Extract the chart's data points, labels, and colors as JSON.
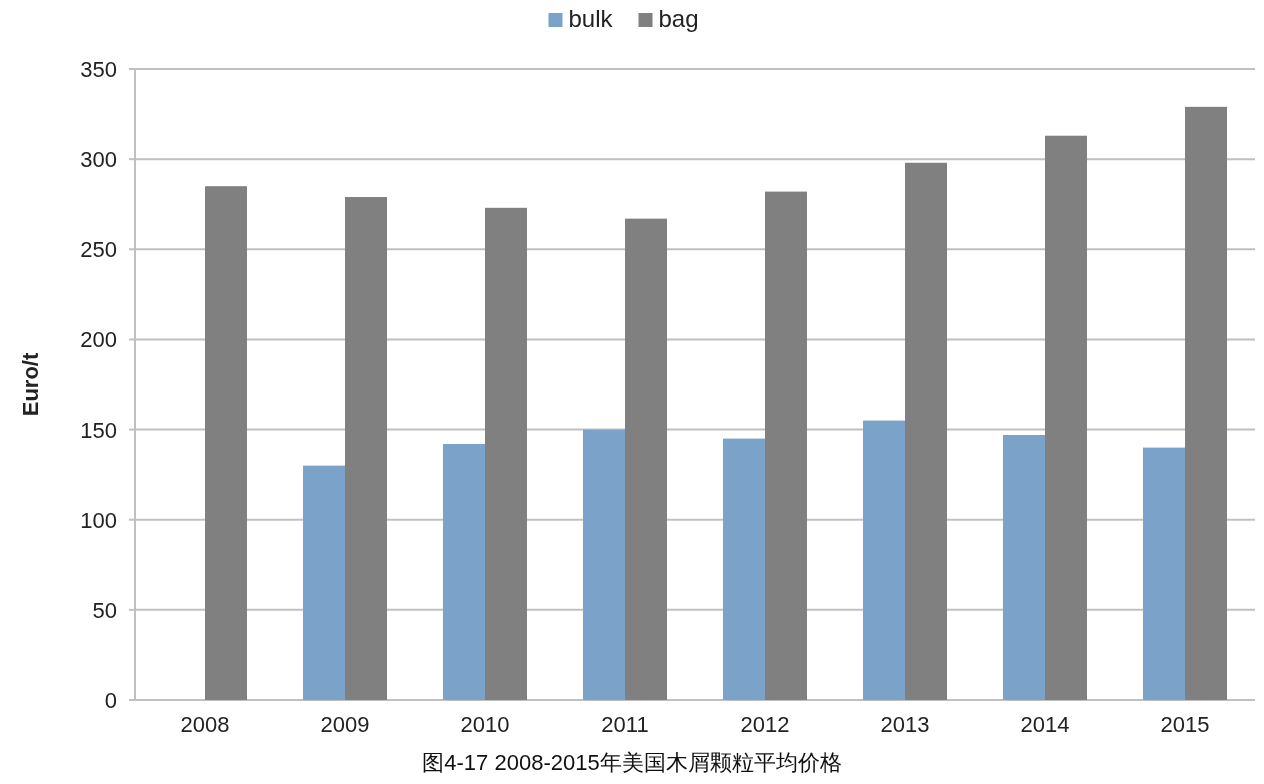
{
  "chart_data": {
    "type": "bar",
    "ylabel": "Euro/t",
    "annotations": [
      "图4-17 2008-2015年美国木屑颗粒平均价格"
    ],
    "categories": [
      "2008",
      "2009",
      "2010",
      "2011",
      "2012",
      "2013",
      "2014",
      "2015"
    ],
    "series": [
      {
        "name": "bulk",
        "color": "#7ba3c9",
        "values": [
          null,
          130,
          142,
          150,
          145,
          155,
          147,
          140
        ]
      },
      {
        "name": "bag",
        "color": "#808080",
        "values": [
          285,
          279,
          273,
          267,
          282,
          298,
          313,
          329
        ]
      }
    ],
    "ylim": [
      0,
      350
    ],
    "yticks": [
      0,
      50,
      100,
      150,
      200,
      250,
      300,
      350
    ],
    "grid": "y",
    "legend": "top"
  }
}
